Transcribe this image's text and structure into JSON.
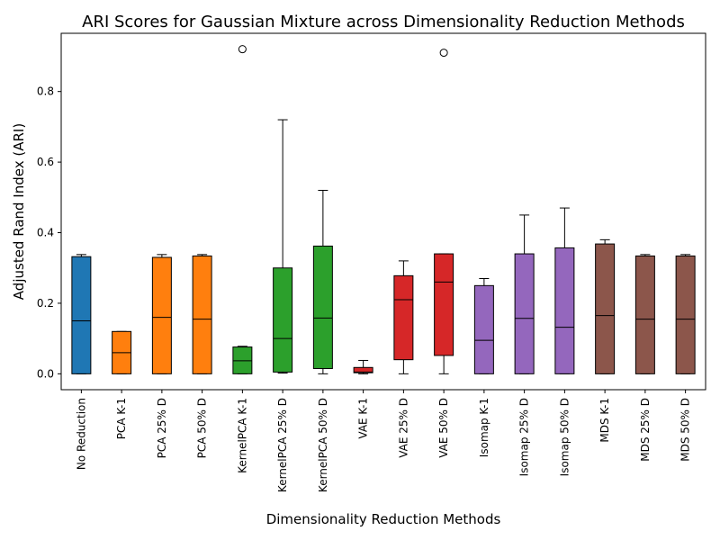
{
  "chart_data": {
    "type": "box",
    "title": "ARI Scores for Gaussian Mixture across Dimensionality Reduction Methods",
    "xlabel": "Dimensionality Reduction Methods",
    "ylabel": "Adjusted Rand Index (ARI)",
    "ylim": [
      -0.045,
      0.965
    ],
    "yticks": [
      0.0,
      0.2,
      0.4,
      0.6,
      0.8
    ],
    "ytick_labels": [
      "0.0",
      "0.2",
      "0.4",
      "0.6",
      "0.8"
    ],
    "grid": false,
    "categories": [
      "No Reduction",
      "PCA K-1",
      "PCA 25% D",
      "PCA 50% D",
      "KernelPCA K-1",
      "KernelPCA 25% D",
      "KernelPCA 50% D",
      "VAE K-1",
      "VAE 25% D",
      "VAE 50% D",
      "Isomap K-1",
      "Isomap 25% D",
      "Isomap 50% D",
      "MDS K-1",
      "MDS 25% D",
      "MDS 50% D"
    ],
    "boxes": [
      {
        "whisker_low": 0.0,
        "q1": 0.0,
        "median": 0.15,
        "q3": 0.332,
        "whisker_high": 0.338,
        "fliers": [],
        "color": "#1f77b4"
      },
      {
        "whisker_low": 0.0,
        "q1": 0.0,
        "median": 0.06,
        "q3": 0.12,
        "whisker_high": 0.12,
        "fliers": [],
        "color": "#ff7f0e"
      },
      {
        "whisker_low": 0.0,
        "q1": 0.0,
        "median": 0.16,
        "q3": 0.33,
        "whisker_high": 0.338,
        "fliers": [],
        "color": "#ff7f0e"
      },
      {
        "whisker_low": 0.0,
        "q1": 0.0,
        "median": 0.155,
        "q3": 0.334,
        "whisker_high": 0.338,
        "fliers": [],
        "color": "#ff7f0e"
      },
      {
        "whisker_low": 0.0,
        "q1": 0.0,
        "median": 0.037,
        "q3": 0.076,
        "whisker_high": 0.078,
        "fliers": [
          0.92
        ],
        "color": "#2ca02c"
      },
      {
        "whisker_low": 0.002,
        "q1": 0.005,
        "median": 0.1,
        "q3": 0.3,
        "whisker_high": 0.72,
        "fliers": [],
        "color": "#2ca02c"
      },
      {
        "whisker_low": 0.0,
        "q1": 0.015,
        "median": 0.158,
        "q3": 0.362,
        "whisker_high": 0.52,
        "fliers": [],
        "color": "#2ca02c"
      },
      {
        "whisker_low": 0.0,
        "q1": 0.003,
        "median": 0.005,
        "q3": 0.018,
        "whisker_high": 0.038,
        "fliers": [],
        "color": "#d62728"
      },
      {
        "whisker_low": 0.0,
        "q1": 0.04,
        "median": 0.21,
        "q3": 0.278,
        "whisker_high": 0.32,
        "fliers": [],
        "color": "#d62728"
      },
      {
        "whisker_low": 0.0,
        "q1": 0.052,
        "median": 0.26,
        "q3": 0.34,
        "whisker_high": 0.34,
        "fliers": [
          0.91
        ],
        "color": "#d62728"
      },
      {
        "whisker_low": 0.0,
        "q1": 0.0,
        "median": 0.095,
        "q3": 0.25,
        "whisker_high": 0.27,
        "fliers": [],
        "color": "#9467bd"
      },
      {
        "whisker_low": 0.0,
        "q1": 0.0,
        "median": 0.157,
        "q3": 0.34,
        "whisker_high": 0.45,
        "fliers": [],
        "color": "#9467bd"
      },
      {
        "whisker_low": 0.0,
        "q1": 0.0,
        "median": 0.132,
        "q3": 0.357,
        "whisker_high": 0.47,
        "fliers": [],
        "color": "#9467bd"
      },
      {
        "whisker_low": 0.0,
        "q1": 0.0,
        "median": 0.165,
        "q3": 0.368,
        "whisker_high": 0.38,
        "fliers": [],
        "color": "#8c564b"
      },
      {
        "whisker_low": 0.0,
        "q1": 0.0,
        "median": 0.155,
        "q3": 0.334,
        "whisker_high": 0.338,
        "fliers": [],
        "color": "#8c564b"
      },
      {
        "whisker_low": 0.0,
        "q1": 0.0,
        "median": 0.155,
        "q3": 0.334,
        "whisker_high": 0.338,
        "fliers": [],
        "color": "#8c564b"
      }
    ]
  }
}
